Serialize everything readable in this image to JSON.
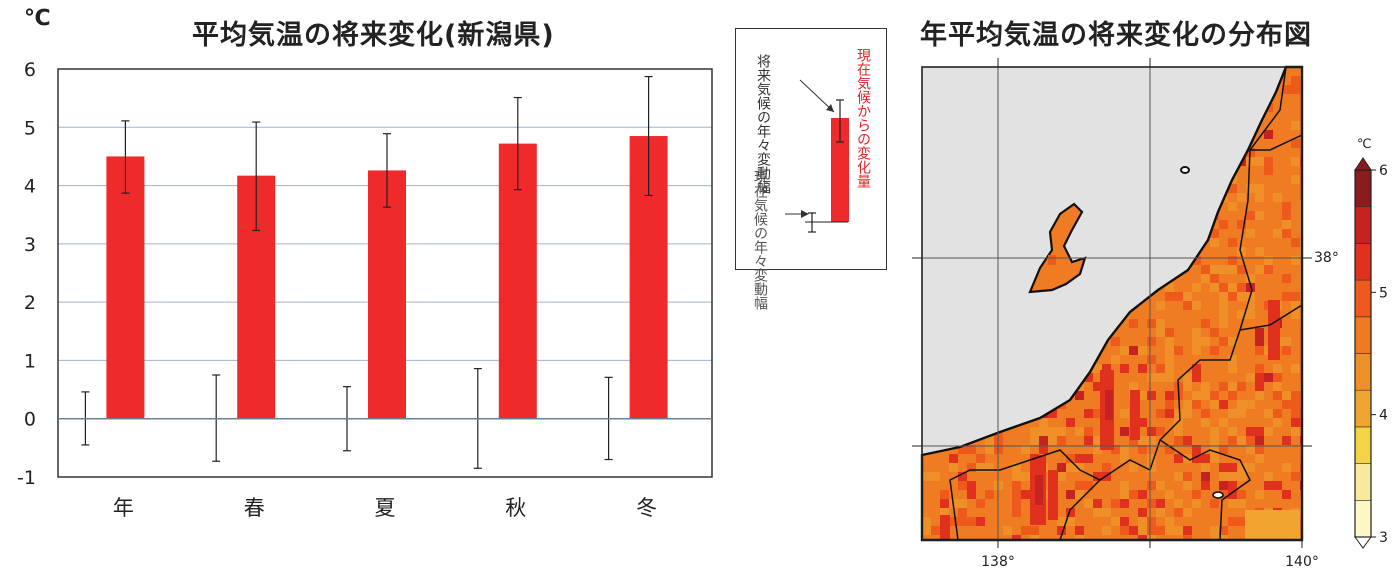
{
  "chart_data": [
    {
      "type": "bar",
      "title": "平均気温の将来変化(新潟県)",
      "unit_label": "℃",
      "categories": [
        "年",
        "春",
        "夏",
        "秋",
        "冬"
      ],
      "ylim": [
        -1,
        6
      ],
      "yticks": [
        "-1",
        "0",
        "1",
        "2",
        "3",
        "4",
        "5",
        "6"
      ],
      "grid": true,
      "series": [
        {
          "values": [
            4.5,
            4.17,
            4.26,
            4.72,
            4.85
          ],
          "error_low": [
            3.87,
            3.23,
            3.63,
            3.93,
            3.83
          ],
          "error_high": [
            5.11,
            5.09,
            4.89,
            5.51,
            5.87
          ],
          "color": "#ee2a2a"
        }
      ],
      "present_variability": {
        "low": [
          -0.45,
          -0.73,
          -0.55,
          -0.85,
          -0.7
        ],
        "high": [
          0.46,
          0.75,
          0.55,
          0.86,
          0.71
        ]
      }
    },
    {
      "type": "heatmap",
      "title": "年平均気温の将来変化の分布図",
      "x_tick_labels": [
        "138°",
        "140°"
      ],
      "y_tick_labels": [
        "38°"
      ],
      "colorbar": {
        "unit": "℃",
        "tick_labels": [
          "3",
          "4",
          "5",
          "6"
        ],
        "range": [
          3,
          6
        ],
        "colors": [
          "#fdf6c6",
          "#f8ea9c",
          "#f3d444",
          "#f0a530",
          "#ef8f28",
          "#ef7a22",
          "#ee5a1c",
          "#e0301e",
          "#c42322",
          "#8a1c1e"
        ]
      }
    }
  ],
  "legend": {
    "change_label": "現在気候からの変化量",
    "future_label": "将来気候の年々変動幅",
    "present_label": "現在気候の年々変動幅"
  },
  "map": {
    "sea_color": "#e2e2e2",
    "land_color": "#ef7c22"
  }
}
